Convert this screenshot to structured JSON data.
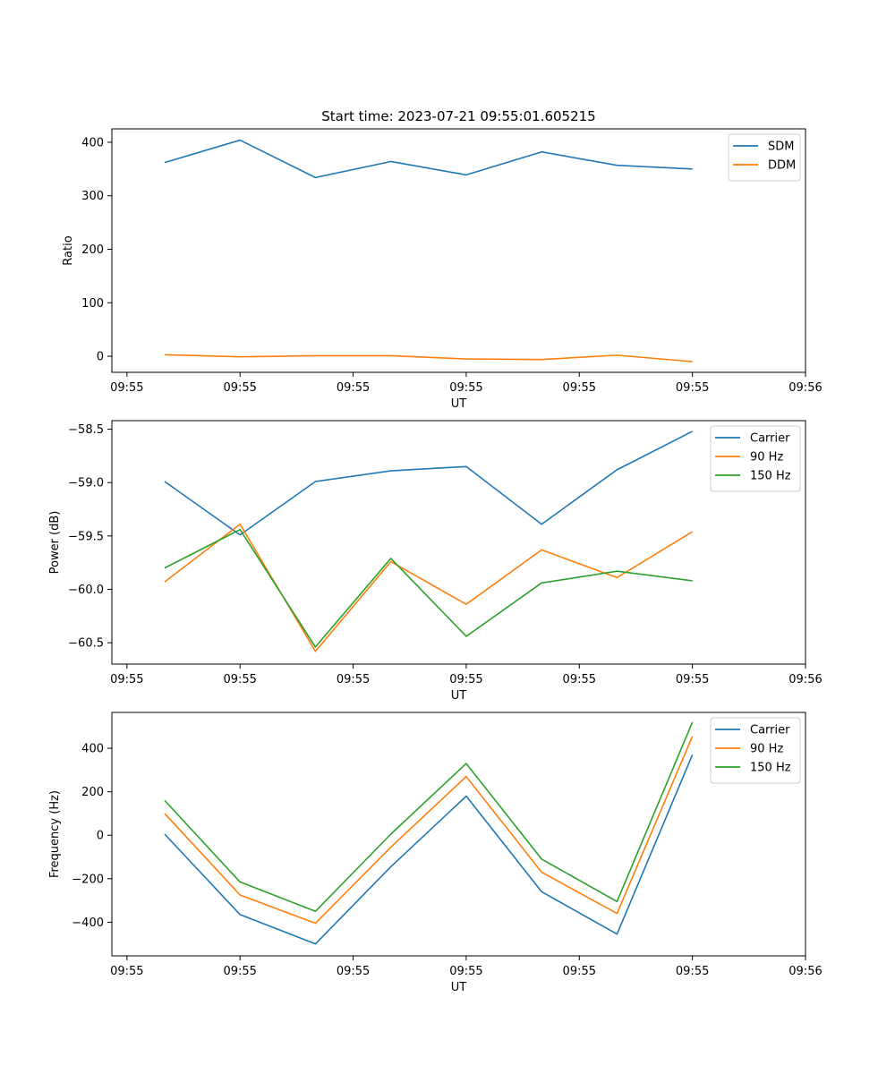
{
  "chart_data": [
    {
      "type": "line",
      "title": "Start time: 2023-07-21 09:55:01.605215",
      "xlabel": "UT",
      "ylabel": "Ratio",
      "ylim": [
        -30,
        425
      ],
      "yticks": [
        0,
        100,
        200,
        300,
        400
      ],
      "ytick_labels": [
        "0",
        "100",
        "200",
        "300",
        "400"
      ],
      "xlim": [
        -0.7,
        8.5
      ],
      "xticks": [
        -0.5,
        1.0,
        2.5,
        4.0,
        5.5,
        7.0,
        8.5
      ],
      "xtick_labels": [
        "09:55",
        "09:55",
        "09:55",
        "09:55",
        "09:55",
        "09:55",
        "09:56"
      ],
      "x": [
        0,
        1,
        2,
        3,
        4,
        5,
        6,
        7
      ],
      "legend_position": "top-right",
      "series": [
        {
          "name": "SDM",
          "color": "#1f77b4",
          "values": [
            362,
            404,
            334,
            364,
            339,
            382,
            357,
            350
          ]
        },
        {
          "name": "DDM",
          "color": "#ff7f0e",
          "values": [
            3,
            -1,
            1,
            1,
            -5,
            -6,
            2,
            -10
          ]
        }
      ]
    },
    {
      "type": "line",
      "title": "",
      "xlabel": "UT",
      "ylabel": "Power (dB)",
      "ylim": [
        -60.7,
        -58.42
      ],
      "yticks": [
        -60.5,
        -60.0,
        -59.5,
        -59.0,
        -58.5
      ],
      "ytick_labels": [
        "−60.5",
        "−60.0",
        "−59.5",
        "−59.0",
        "−58.5"
      ],
      "xlim": [
        -0.7,
        8.5
      ],
      "xticks": [
        -0.5,
        1.0,
        2.5,
        4.0,
        5.5,
        7.0,
        8.5
      ],
      "xtick_labels": [
        "09:55",
        "09:55",
        "09:55",
        "09:55",
        "09:55",
        "09:55",
        "09:56"
      ],
      "x": [
        0,
        1,
        2,
        3,
        4,
        5,
        6,
        7
      ],
      "legend_position": "top-right",
      "series": [
        {
          "name": "Carrier",
          "color": "#1f77b4",
          "values": [
            -58.99,
            -59.49,
            -58.99,
            -58.89,
            -58.85,
            -59.39,
            -58.88,
            -58.52
          ]
        },
        {
          "name": "90 Hz",
          "color": "#ff7f0e",
          "values": [
            -59.93,
            -59.39,
            -60.58,
            -59.74,
            -60.14,
            -59.63,
            -59.89,
            -59.46
          ]
        },
        {
          "name": "150 Hz",
          "color": "#2ca02c",
          "values": [
            -59.8,
            -59.44,
            -60.54,
            -59.71,
            -60.44,
            -59.94,
            -59.83,
            -59.92
          ]
        }
      ]
    },
    {
      "type": "line",
      "title": "",
      "xlabel": "UT",
      "ylabel": "Frequency (Hz)",
      "ylim": [
        -555,
        565
      ],
      "yticks": [
        -400,
        -200,
        0,
        200,
        400
      ],
      "ytick_labels": [
        "−400",
        "−200",
        "0",
        "200",
        "400"
      ],
      "xlim": [
        -0.7,
        8.5
      ],
      "xticks": [
        -0.5,
        1.0,
        2.5,
        4.0,
        5.5,
        7.0,
        8.5
      ],
      "xtick_labels": [
        "09:55",
        "09:55",
        "09:55",
        "09:55",
        "09:55",
        "09:55",
        "09:56"
      ],
      "x": [
        0,
        1,
        2,
        3,
        4,
        5,
        6,
        7
      ],
      "legend_position": "top-right",
      "series": [
        {
          "name": "Carrier",
          "color": "#1f77b4",
          "values": [
            5,
            -365,
            -500,
            -145,
            180,
            -260,
            -455,
            370
          ]
        },
        {
          "name": "90 Hz",
          "color": "#ff7f0e",
          "values": [
            100,
            -275,
            -405,
            -55,
            270,
            -170,
            -360,
            455
          ]
        },
        {
          "name": "150 Hz",
          "color": "#2ca02c",
          "values": [
            160,
            -215,
            -350,
            5,
            330,
            -110,
            -305,
            520
          ]
        }
      ]
    }
  ]
}
